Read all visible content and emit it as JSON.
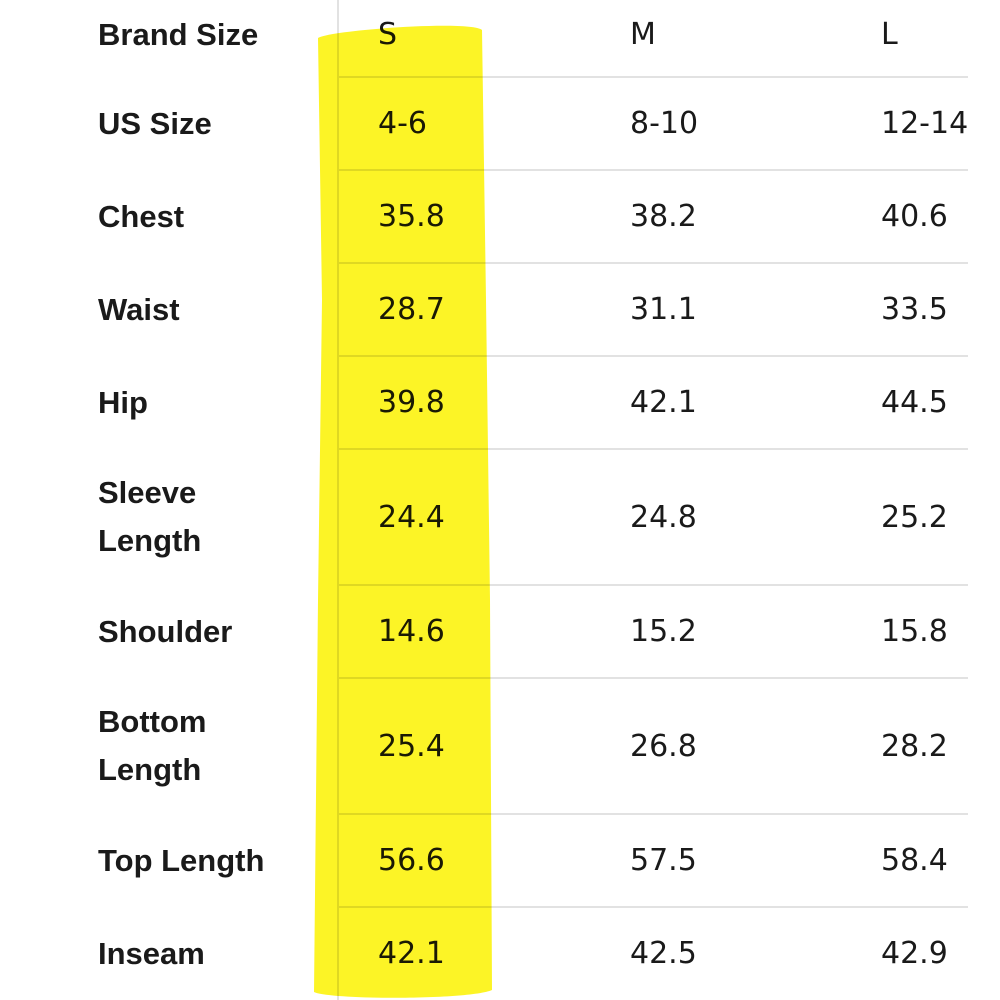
{
  "table": {
    "header": [
      "Brand Size",
      "S",
      "M",
      "L"
    ],
    "rows": [
      [
        "US Size",
        "4-6",
        "8-10",
        "12-14"
      ],
      [
        "Chest",
        "35.8",
        "38.2",
        "40.6"
      ],
      [
        "Waist",
        "28.7",
        "31.1",
        "33.5"
      ],
      [
        "Hip",
        "39.8",
        "42.1",
        "44.5"
      ],
      [
        "Sleeve Length",
        "24.4",
        "24.8",
        "25.2"
      ],
      [
        "Shoulder",
        "14.6",
        "15.2",
        "15.8"
      ],
      [
        "Bottom Length",
        "25.4",
        "26.8",
        "28.2"
      ],
      [
        "Top Length",
        "56.6",
        "57.5",
        "58.4"
      ],
      [
        "Inseam",
        "42.1",
        "42.5",
        "42.9"
      ]
    ]
  }
}
